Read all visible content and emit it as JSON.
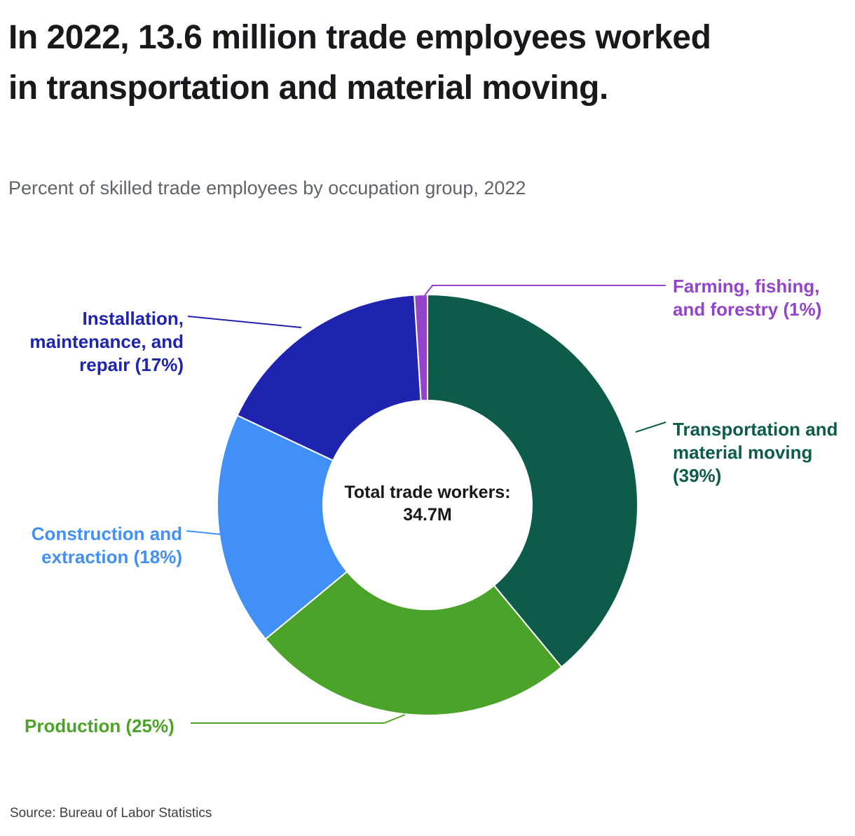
{
  "page": {
    "title": "In 2022, 13.6 million trade employees worked in transportation and material moving.",
    "subtitle": "Percent of skilled trade employees by occupation group, 2022",
    "source": "Source: Bureau of Labor Statistics"
  },
  "chart_data": {
    "type": "pie",
    "subtype": "donut",
    "title": "In 2022, 13.6 million trade employees worked in transportation and material moving.",
    "subtitle": "Percent of skilled trade employees by occupation group, 2022",
    "direction": "clockwise",
    "start_angle_deg": 0,
    "center_label": {
      "line1": "Total trade workers:",
      "line2": "34.7M"
    },
    "segments": [
      {
        "name": "Transportation and material moving",
        "pct": 39,
        "color": "#0d5c4a"
      },
      {
        "name": "Production",
        "pct": 25,
        "color": "#4ba32a"
      },
      {
        "name": "Construction and extraction",
        "pct": 18,
        "color": "#4190f7"
      },
      {
        "name": "Installation, maintenance, and repair",
        "pct": 17,
        "color": "#1e23b0"
      },
      {
        "name": "Farming, fishing, and forestry",
        "pct": 1,
        "color": "#9444cc"
      }
    ],
    "labels": {
      "farming": {
        "line1": "Farming, fishing,",
        "line2": "and forestry (1%)"
      },
      "transportation": {
        "line1": "Transportation and",
        "line2": "material moving",
        "line3": "(39%)"
      },
      "installation": {
        "line1": "Installation,",
        "line2": "maintenance, and",
        "line3": "repair (17%)"
      },
      "construction": {
        "line1": "Construction and",
        "line2": "extraction (18%)"
      },
      "production": {
        "line1": "Production (25%)"
      }
    }
  }
}
